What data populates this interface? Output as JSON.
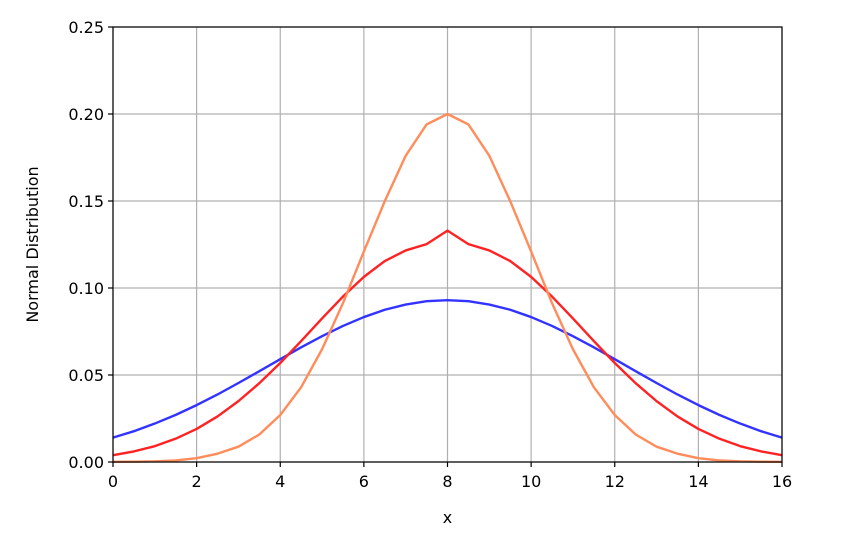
{
  "chart_data": {
    "type": "line",
    "title": "",
    "xlabel": "x",
    "ylabel": "Normal Distribution",
    "xlim": [
      0,
      16
    ],
    "ylim": [
      0,
      0.25
    ],
    "xticks": [
      0,
      2,
      4,
      6,
      8,
      10,
      12,
      14,
      16
    ],
    "xtick_labels": [
      "0",
      "2",
      "4",
      "6",
      "8",
      "10",
      "12",
      "14",
      "16"
    ],
    "yticks": [
      0,
      0.05,
      0.1,
      0.15,
      0.2,
      0.25
    ],
    "ytick_labels": [
      "0.00",
      "0.05",
      "0.10",
      "0.15",
      "0.20",
      "0.25"
    ],
    "grid": true,
    "legend": "none",
    "series": [
      {
        "color": "#3333ff",
        "x": [
          0,
          0.5,
          1,
          1.5,
          2,
          2.5,
          3,
          3.5,
          4,
          4.5,
          5,
          5.5,
          6,
          6.5,
          7,
          7.5,
          8,
          8.5,
          9,
          9.5,
          10,
          10.5,
          11,
          11.5,
          12,
          12.5,
          13,
          13.5,
          14,
          14.5,
          15,
          15.5,
          16
        ],
        "y": [
          0.014,
          0.0177,
          0.0221,
          0.0271,
          0.0327,
          0.0388,
          0.0454,
          0.0522,
          0.0591,
          0.0659,
          0.0723,
          0.0782,
          0.0833,
          0.0875,
          0.0905,
          0.0924,
          0.093,
          0.0924,
          0.0905,
          0.0875,
          0.0833,
          0.0782,
          0.0723,
          0.0659,
          0.0591,
          0.0522,
          0.0454,
          0.0388,
          0.0327,
          0.0271,
          0.0221,
          0.0177,
          0.014
        ]
      },
      {
        "color": "#ff2222",
        "x": [
          0,
          0.5,
          1,
          1.5,
          2,
          2.5,
          3,
          3.5,
          4,
          4.5,
          5,
          5.5,
          6,
          6.5,
          7,
          7.5,
          8,
          8.5,
          9,
          9.5,
          10,
          10.5,
          11,
          11.5,
          12,
          12.5,
          13,
          13.5,
          14,
          14.5,
          15,
          15.5,
          16
        ],
        "y": [
          0.0039,
          0.0061,
          0.0091,
          0.0134,
          0.019,
          0.0262,
          0.035,
          0.0453,
          0.0569,
          0.0695,
          0.0825,
          0.0951,
          0.1064,
          0.1155,
          0.1216,
          0.1252,
          0.133,
          0.1252,
          0.1216,
          0.1155,
          0.1064,
          0.0951,
          0.0825,
          0.0695,
          0.0569,
          0.0453,
          0.035,
          0.0262,
          0.019,
          0.0134,
          0.0091,
          0.0061,
          0.0039
        ]
      },
      {
        "color": "#ff8c5a",
        "x": [
          0,
          0.5,
          1,
          1.5,
          2,
          2.5,
          3,
          3.5,
          4,
          4.5,
          5,
          5.5,
          6,
          6.5,
          7,
          7.5,
          8,
          8.5,
          9,
          9.5,
          10,
          10.5,
          11,
          11.5,
          12,
          12.5,
          13,
          13.5,
          14,
          14.5,
          15,
          15.5,
          16
        ],
        "y": [
          0.0001,
          0.0002,
          0.0004,
          0.0009,
          0.0022,
          0.0048,
          0.0088,
          0.0158,
          0.027,
          0.043,
          0.0648,
          0.0913,
          0.121,
          0.1499,
          0.176,
          0.194,
          0.2,
          0.194,
          0.176,
          0.1499,
          0.121,
          0.0913,
          0.0648,
          0.043,
          0.027,
          0.0158,
          0.0088,
          0.0048,
          0.0022,
          0.0009,
          0.0004,
          0.0002,
          0.0001
        ]
      }
    ]
  }
}
